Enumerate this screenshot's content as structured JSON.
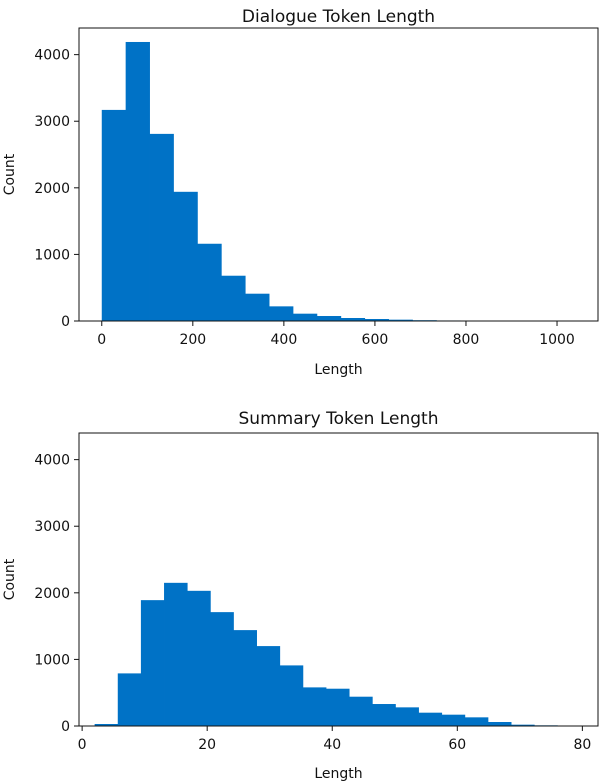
{
  "chart_data": [
    {
      "type": "bar",
      "title": "Dialogue Token Length",
      "xlabel": "Length",
      "ylabel": "Count",
      "xlim": [
        -50,
        1090
      ],
      "ylim": [
        0,
        4400
      ],
      "xticks": [
        0,
        200,
        400,
        600,
        800,
        1000
      ],
      "yticks": [
        0,
        1000,
        2000,
        3000,
        4000
      ],
      "bar_color": "#0072c6",
      "bin_edges": [
        0,
        52.5,
        105,
        157.5,
        210,
        262.5,
        315,
        367.5,
        420,
        472.5,
        525,
        577.5,
        630,
        682.5,
        735,
        787.5,
        840,
        892.5,
        945,
        997.5,
        1050
      ],
      "values": [
        3170,
        4190,
        2810,
        1940,
        1160,
        680,
        410,
        220,
        110,
        75,
        45,
        30,
        20,
        12,
        8,
        6,
        4,
        3,
        2,
        2
      ],
      "grid": false
    },
    {
      "type": "bar",
      "title": "Summary Token Length",
      "xlabel": "Length",
      "ylabel": "Count",
      "xlim": [
        -0.5,
        82.5
      ],
      "ylim": [
        0,
        4400
      ],
      "xticks": [
        0,
        20,
        40,
        60,
        80
      ],
      "yticks": [
        0,
        1000,
        2000,
        3000,
        4000
      ],
      "bar_color": "#0072c6",
      "bin_edges": [
        2,
        5.7,
        9.4,
        13.1,
        16.8,
        20.5,
        24.2,
        27.9,
        31.6,
        35.3,
        39,
        42.7,
        46.4,
        50.1,
        53.8,
        57.5,
        61.2,
        64.9,
        68.6,
        72.3,
        76
      ],
      "values": [
        30,
        790,
        1890,
        2150,
        2030,
        1710,
        1440,
        1200,
        910,
        580,
        560,
        440,
        330,
        280,
        200,
        170,
        130,
        60,
        20,
        10
      ],
      "grid": false
    }
  ]
}
